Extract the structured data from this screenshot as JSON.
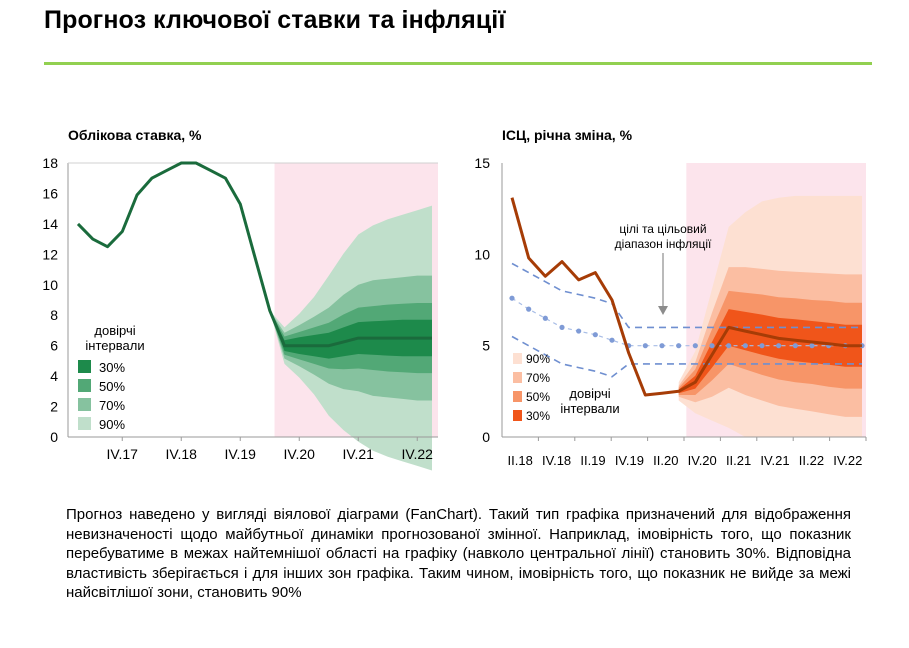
{
  "title": "Прогноз ключової ставки та інфляції",
  "colors": {
    "title_rule": "#92d050",
    "forecast_shade": "#fce4ec"
  },
  "chart_data": [
    {
      "type": "area",
      "title": "Облікова ставка, %",
      "ylim": [
        0,
        18
      ],
      "y_ticks": [
        "0",
        "2",
        "4",
        "6",
        "8",
        "10",
        "12",
        "14",
        "16",
        "18"
      ],
      "x_tick_labels": [
        "IV.17",
        "IV.18",
        "IV.19",
        "IV.20",
        "IV.21",
        "IV.22"
      ],
      "forecast_start_index": 14,
      "series": [
        {
          "name": "",
          "color": "#1a6b3c",
          "values": [
            14.0,
            13.0,
            12.5,
            13.5,
            15.9,
            17.0,
            17.5,
            18.0,
            18.0,
            17.5,
            17.0,
            15.3,
            11.8,
            8.3,
            6.0,
            6.0,
            6.0,
            6.0,
            6.25,
            6.5,
            6.5,
            6.5,
            6.5,
            6.5,
            6.5
          ]
        }
      ],
      "legend_title": "довірчі інтервали",
      "legend": [
        {
          "label": "30%",
          "color": "#1d8a4b"
        },
        {
          "label": "50%",
          "color": "#52a876"
        },
        {
          "label": "70%",
          "color": "#86c29f"
        },
        {
          "label": "90%",
          "color": "#c0dfcb"
        }
      ],
      "fan_bands": {
        "start_index": 13,
        "center": [
          8.3,
          6.0,
          6.0,
          6.0,
          6.0,
          6.25,
          6.5,
          6.5,
          6.5,
          6.5,
          6.5,
          6.5
        ],
        "half_widths_30": [
          0,
          0.35,
          0.55,
          0.7,
          0.85,
          0.95,
          1.05,
          1.1,
          1.15,
          1.2,
          1.2,
          1.2
        ],
        "half_widths_50": [
          0,
          0.6,
          0.9,
          1.2,
          1.5,
          1.8,
          2.0,
          2.1,
          2.2,
          2.25,
          2.3,
          2.3
        ],
        "half_widths_70": [
          0,
          0.85,
          1.35,
          1.9,
          2.5,
          3.1,
          3.5,
          3.8,
          3.9,
          4.0,
          4.1,
          4.1
        ],
        "half_widths_90": [
          0,
          1.2,
          2.1,
          3.2,
          4.6,
          5.8,
          6.8,
          7.4,
          7.8,
          8.1,
          8.4,
          8.7
        ]
      }
    },
    {
      "type": "area",
      "title": "ІСЦ, річна зміна, %",
      "ylim": [
        0,
        15
      ],
      "y_ticks": [
        "0",
        "5",
        "10",
        "15"
      ],
      "x_tick_labels": [
        "II.18",
        "IV.18",
        "II.19",
        "IV.19",
        "II.20",
        "IV.20",
        "II.21",
        "IV.21",
        "II.22",
        "IV.22"
      ],
      "forecast_start_index": 11,
      "series": [
        {
          "name": "",
          "color": "#a63c06",
          "values": [
            13.1,
            9.8,
            8.8,
            9.6,
            8.6,
            9.0,
            7.5,
            4.6,
            2.3,
            2.4,
            2.5,
            3.0,
            4.5,
            6.0,
            5.8,
            5.6,
            5.4,
            5.3,
            5.2,
            5.1,
            5.0,
            5.0
          ]
        }
      ],
      "target": {
        "label": "цілі та цільовий діапазон інфляції",
        "center": [
          7.6,
          7.0,
          6.5,
          6.0,
          5.8,
          5.6,
          5.3,
          5.0,
          5.0,
          5.0,
          5.0,
          5.0,
          5.0,
          5.0,
          5.0,
          5.0,
          5.0,
          5.0,
          5.0,
          5.0,
          5.0,
          5.0
        ],
        "upper": [
          9.5,
          9.0,
          8.5,
          8.0,
          7.8,
          7.6,
          7.3,
          6.0,
          6.0,
          6.0,
          6.0,
          6.0,
          6.0,
          6.0,
          6.0,
          6.0,
          6.0,
          6.0,
          6.0,
          6.0,
          6.0,
          6.0
        ],
        "lower": [
          5.5,
          5.0,
          4.5,
          4.0,
          3.8,
          3.6,
          3.3,
          4.0,
          4.0,
          4.0,
          4.0,
          4.0,
          4.0,
          4.0,
          4.0,
          4.0,
          4.0,
          4.0,
          4.0,
          4.0,
          4.0,
          4.0
        ]
      },
      "legend_title": "довірчі інтервали",
      "legend": [
        {
          "label": "90%",
          "color": "#fde0d2"
        },
        {
          "label": "70%",
          "color": "#fbbea2"
        },
        {
          "label": "50%",
          "color": "#f79568"
        },
        {
          "label": "30%",
          "color": "#f0551a"
        }
      ],
      "fan_bands": {
        "start_index": 10,
        "center": [
          2.5,
          3.0,
          4.5,
          6.0,
          5.8,
          5.6,
          5.4,
          5.3,
          5.2,
          5.1,
          5.0,
          5.0
        ],
        "half_widths_30": [
          0.1,
          0.35,
          0.7,
          1.0,
          1.05,
          1.1,
          1.12,
          1.15,
          1.15,
          1.15,
          1.15,
          1.15
        ],
        "half_widths_50": [
          0.2,
          0.7,
          1.4,
          2.0,
          2.1,
          2.2,
          2.25,
          2.3,
          2.3,
          2.35,
          2.35,
          2.35
        ],
        "half_widths_70": [
          0.3,
          1.1,
          2.3,
          3.3,
          3.5,
          3.6,
          3.7,
          3.75,
          3.8,
          3.85,
          3.9,
          3.9
        ],
        "half_widths_90": [
          0.5,
          1.7,
          3.6,
          5.5,
          6.5,
          7.3,
          7.7,
          7.9,
          8.0,
          8.1,
          8.2,
          8.2
        ]
      }
    }
  ],
  "description": "Прогноз наведено у вигляді віялової діаграми (FanChart). Такий тип графіка призначений для відображення невизначеності щодо майбутньої динаміки прогнозованої змінної. Наприклад, імовірність того, що показник перебуватиме в межах найтемнішої області на графіку (навколо центральної лінії) становить 30%. Відповідна властивість зберігається і для інших зон графіка. Таким чином, імовірність того, що показник не вийде за межі найсвітлішої зони, становить 90%"
}
